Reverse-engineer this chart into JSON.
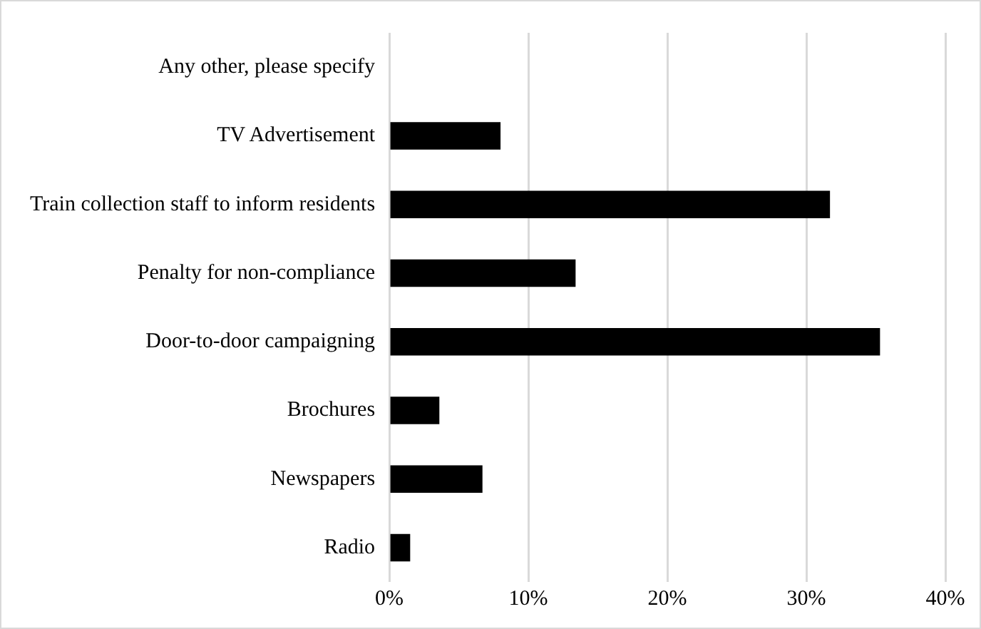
{
  "chart_data": {
    "type": "bar",
    "orientation": "horizontal",
    "categories": [
      "Any other, please specify",
      "TV Advertisement",
      "Train collection staff to inform residents",
      "Penalty for non-compliance",
      "Door-to-door campaigning",
      "Brochures",
      "Newspapers",
      "Radio"
    ],
    "values": [
      0,
      8.0,
      31.7,
      13.4,
      35.3,
      3.6,
      6.7,
      1.5
    ],
    "color": "#000000",
    "xlim": [
      0,
      40
    ],
    "xticks": [
      {
        "value": 0,
        "label": "0%"
      },
      {
        "value": 10,
        "label": "10%"
      },
      {
        "value": 20,
        "label": "20%"
      },
      {
        "value": 30,
        "label": "30%"
      },
      {
        "value": 40,
        "label": "40%"
      }
    ],
    "grid": "x"
  }
}
